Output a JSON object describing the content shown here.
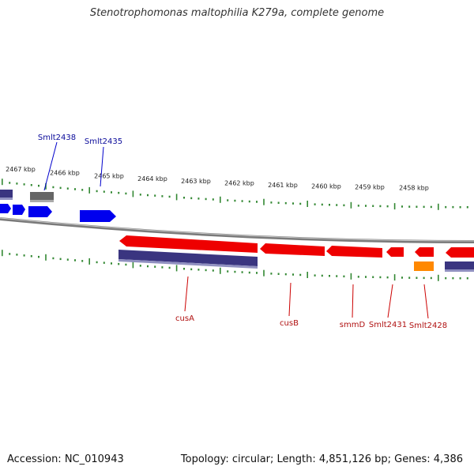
{
  "title": "Stenotrophomonas maltophilia K279a, complete genome",
  "accession": "Accession: NC_010943",
  "summary": "Topology: circular; Length: 4,851,126 bp; Genes: 4,386",
  "colors": {
    "forward_gene": "#0000ee",
    "forward_dark": "#666666",
    "reverse_gene": "#ee0000",
    "reverse_cds": "#3a3580",
    "reverse_orange": "#ff8800",
    "backbone": "#888888",
    "ticks": "#338833",
    "label_top": "#0a0a9a",
    "label_bottom": "#b01010"
  },
  "kbp_labels": [
    "2467 kbp",
    "2466 kbp",
    "2465 kbp",
    "2464 kbp",
    "2463 kbp",
    "2462 kbp",
    "2461 kbp",
    "2460 kbp",
    "2459 kbp",
    "2458 kbp"
  ],
  "gene_labels_top": [
    "Smlt2438",
    "Smlt2435"
  ],
  "gene_labels_bottom": [
    "cusA",
    "cusB",
    "smmD",
    "Smlt2431",
    "Smlt2428"
  ]
}
